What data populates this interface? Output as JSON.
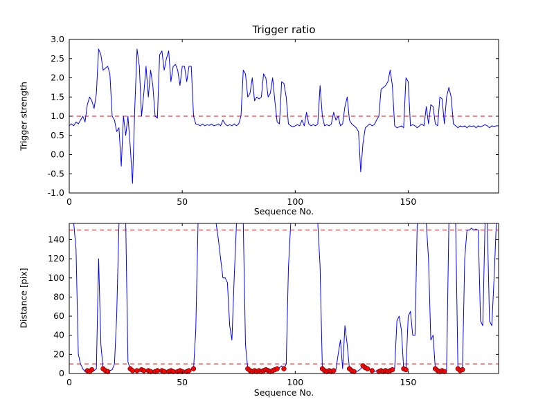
{
  "figure": {
    "background": "#ffffff"
  },
  "chart_data": [
    {
      "id": "trigger-ratio",
      "type": "line",
      "title": "Trigger ratio",
      "xlabel": "Sequence No.",
      "ylabel": "Trigger strength",
      "xlim": [
        0,
        190
      ],
      "ylim": [
        -1.0,
        3.0
      ],
      "grid": false,
      "legend": "none",
      "xtick_values": [
        0,
        50,
        100,
        150
      ],
      "xtick_labels": [
        "0",
        "50",
        "100",
        "150"
      ],
      "ytick_values": [
        -1.0,
        -0.5,
        0.0,
        0.5,
        1.0,
        1.5,
        2.0,
        2.5,
        3.0
      ],
      "ytick_labels": [
        "-1.0",
        "-0.5",
        "0.0",
        "0.5",
        "1.0",
        "1.5",
        "2.0",
        "2.5",
        "3.0"
      ],
      "line_color": "#0000ff",
      "hlines": [
        {
          "y": 1.0,
          "color": "#ff0000",
          "dash": true
        }
      ],
      "series": [
        {
          "name": "trigger-strength",
          "y": [
            0.75,
            0.8,
            0.75,
            0.85,
            0.8,
            0.9,
            1.0,
            0.85,
            1.3,
            1.5,
            1.4,
            1.2,
            1.6,
            2.75,
            2.6,
            2.2,
            2.25,
            2.3,
            2.1,
            1.0,
            0.9,
            0.6,
            0.7,
            -0.3,
            1.0,
            0.5,
            1.0,
            0.2,
            -0.75,
            1.2,
            2.75,
            2.3,
            1.0,
            1.6,
            2.3,
            1.5,
            2.2,
            1.8,
            1.0,
            0.95,
            2.6,
            2.7,
            2.2,
            2.5,
            2.7,
            1.9,
            2.3,
            2.35,
            2.2,
            1.8,
            2.3,
            2.3,
            1.9,
            2.3,
            2.3,
            1.0,
            0.8,
            0.78,
            0.75,
            0.8,
            0.75,
            0.78,
            0.76,
            0.8,
            0.75,
            0.77,
            0.8,
            0.75,
            0.9,
            0.8,
            0.75,
            0.78,
            0.75,
            0.8,
            0.75,
            0.8,
            1.0,
            2.2,
            2.1,
            1.5,
            1.6,
            2.0,
            1.4,
            1.5,
            1.45,
            1.5,
            2.1,
            2.0,
            1.5,
            1.6,
            2.0,
            1.4,
            0.85,
            0.8,
            1.9,
            1.85,
            1.5,
            0.8,
            0.75,
            0.72,
            0.75,
            0.78,
            0.75,
            0.9,
            0.75,
            1.1,
            0.8,
            0.75,
            0.78,
            0.75,
            0.8,
            1.8,
            1.0,
            0.75,
            0.78,
            0.75,
            0.8,
            1.1,
            0.9,
            1.0,
            0.75,
            0.8,
            1.25,
            1.5,
            0.9,
            0.8,
            0.75,
            0.7,
            0.6,
            -0.45,
            0.3,
            0.7,
            0.75,
            0.8,
            0.75,
            0.78,
            0.9,
            1.0,
            1.7,
            1.75,
            1.8,
            1.9,
            2.2,
            1.8,
            0.75,
            0.7,
            0.72,
            0.75,
            0.7,
            2.0,
            1.9,
            0.75,
            0.78,
            0.75,
            0.7,
            0.75,
            0.8,
            0.75,
            1.25,
            0.8,
            1.3,
            1.25,
            0.8,
            0.75,
            1.5,
            1.45,
            0.8,
            1.5,
            1.75,
            1.5,
            0.8,
            0.75,
            0.7,
            0.75,
            0.72,
            0.75,
            0.7,
            0.75,
            0.73,
            0.75,
            0.7,
            0.75,
            0.72,
            0.75,
            0.78,
            0.75,
            0.7,
            0.75,
            0.73,
            0.75,
            0.75
          ]
        }
      ]
    },
    {
      "id": "distance",
      "type": "line",
      "title": "",
      "xlabel": "Sequence No.",
      "ylabel": "Distance [pix]",
      "xlim": [
        0,
        190
      ],
      "ylim": [
        0,
        157
      ],
      "grid": false,
      "legend": "none",
      "xtick_values": [
        0,
        50,
        100,
        150
      ],
      "xtick_labels": [
        "0",
        "50",
        "100",
        "150"
      ],
      "ytick_values": [
        0,
        20,
        40,
        60,
        80,
        100,
        120,
        140
      ],
      "ytick_labels": [
        "0",
        "20",
        "40",
        "60",
        "80",
        "100",
        "120",
        "140"
      ],
      "line_color": "#0000ff",
      "hlines": [
        {
          "y": 150,
          "color": "#ff0000",
          "dash": true
        },
        {
          "y": 10,
          "color": "#ff0000",
          "dash": true
        }
      ],
      "series": [
        {
          "name": "distance",
          "y": [
            157,
            157,
            157,
            130,
            20,
            10,
            5,
            2,
            3,
            2,
            4,
            3,
            5,
            120,
            30,
            5,
            3,
            2,
            3,
            4,
            10,
            60,
            157,
            157,
            157,
            157,
            12,
            5,
            3,
            2,
            3,
            2,
            4,
            3,
            2,
            3,
            2,
            3,
            2,
            3,
            2,
            3,
            2,
            3,
            2,
            3,
            2,
            3,
            2,
            3,
            2,
            3,
            2,
            3,
            4,
            5,
            45,
            157,
            157,
            157,
            157,
            157,
            157,
            157,
            157,
            157,
            140,
            120,
            100,
            100,
            95,
            50,
            35,
            100,
            157,
            157,
            157,
            157,
            30,
            5,
            3,
            2,
            3,
            2,
            3,
            2,
            3,
            4,
            3,
            2,
            3,
            4,
            5,
            6,
            8,
            5,
            10,
            110,
            157,
            157,
            157,
            157,
            157,
            157,
            157,
            157,
            157,
            157,
            157,
            157,
            157,
            112,
            5,
            3,
            2,
            3,
            2,
            3,
            4,
            20,
            35,
            5,
            50,
            30,
            5,
            3,
            2,
            2,
            3,
            5,
            8,
            6,
            5,
            4,
            3,
            2,
            3,
            2,
            3,
            2,
            3,
            2,
            3,
            4,
            5,
            55,
            60,
            45,
            5,
            4,
            60,
            65,
            40,
            40,
            157,
            157,
            157,
            157,
            157,
            120,
            35,
            40,
            5,
            3,
            2,
            3,
            2,
            3,
            157,
            157,
            157,
            157,
            5,
            3,
            4,
            120,
            150,
            150,
            152,
            150,
            151,
            150,
            55,
            50,
            157,
            157,
            55,
            50,
            100,
            157,
            157
          ]
        }
      ],
      "markers": {
        "name": "close-distance-points",
        "color": "#ff0000",
        "indices": [
          8,
          9,
          10,
          15,
          16,
          17,
          27,
          28,
          30,
          32,
          33,
          35,
          36,
          38,
          39,
          41,
          42,
          44,
          45,
          46,
          48,
          49,
          50,
          52,
          53,
          55,
          79,
          80,
          81,
          82,
          83,
          84,
          85,
          86,
          87,
          88,
          89,
          90,
          91,
          92,
          95,
          112,
          113,
          114,
          115,
          116,
          117,
          124,
          125,
          126,
          130,
          131,
          132,
          134,
          137,
          138,
          139,
          140,
          141,
          142,
          143,
          148,
          149,
          162,
          163,
          164,
          165,
          166,
          172,
          173,
          174
        ]
      }
    }
  ]
}
